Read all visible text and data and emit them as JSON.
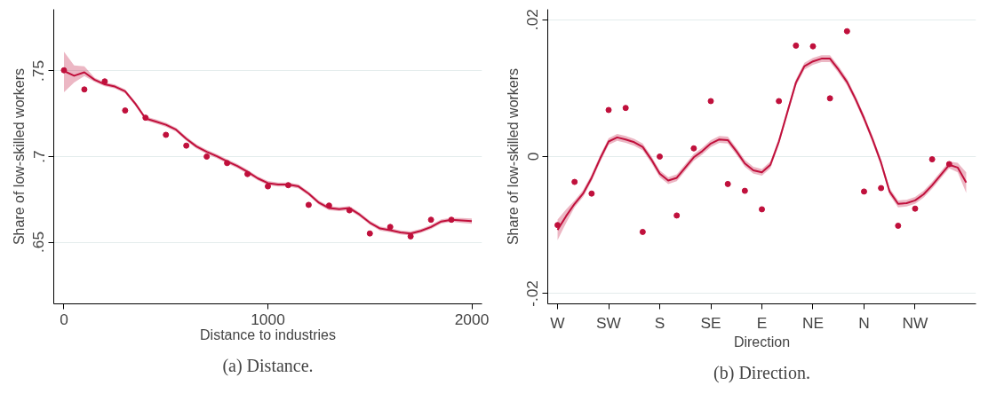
{
  "chart_data": [
    {
      "type": "scatter",
      "title": "(a) Distance.",
      "xlabel": "Distance to industries",
      "ylabel": "Share of low-skilled workers",
      "xlim": [
        -50,
        2050
      ],
      "xticks": [
        0,
        1000,
        2000
      ],
      "ylim": [
        0.614,
        0.786
      ],
      "yticks": [
        {
          "value": 0.65,
          "label": ".65"
        },
        {
          "value": 0.7,
          "label": ".7"
        },
        {
          "value": 0.75,
          "label": ".75"
        }
      ],
      "grid": "y",
      "series": [
        {
          "marker": "circle",
          "color": "#c0103c",
          "x": [
            0,
            100,
            200,
            300,
            400,
            500,
            600,
            700,
            800,
            900,
            1000,
            1100,
            1200,
            1300,
            1400,
            1500,
            1600,
            1700,
            1800,
            1900
          ],
          "values": [
            0.7504,
            0.7392,
            0.7439,
            0.7269,
            0.7227,
            0.7127,
            0.7064,
            0.7,
            0.6962,
            0.6898,
            0.6826,
            0.6833,
            0.6718,
            0.6714,
            0.6686,
            0.6551,
            0.6589,
            0.6534,
            0.6631,
            0.6631
          ]
        },
        {
          "type": "line",
          "line_style": "solid",
          "color": "#c0103c",
          "x": [
            0,
            50,
            100,
            150,
            200,
            250,
            300,
            350,
            400,
            450,
            500,
            550,
            600,
            650,
            700,
            750,
            800,
            850,
            900,
            950,
            1000,
            1050,
            1100,
            1150,
            1200,
            1250,
            1300,
            1350,
            1400,
            1450,
            1500,
            1550,
            1600,
            1650,
            1700,
            1750,
            1800,
            1850,
            1900,
            1950,
            2000
          ],
          "values": [
            0.75,
            0.7472,
            0.7492,
            0.7449,
            0.7422,
            0.7409,
            0.7381,
            0.7309,
            0.7223,
            0.7205,
            0.7186,
            0.7157,
            0.7104,
            0.7059,
            0.7028,
            0.7002,
            0.6972,
            0.6945,
            0.6911,
            0.6873,
            0.6845,
            0.6837,
            0.6837,
            0.6826,
            0.6784,
            0.6731,
            0.6699,
            0.6693,
            0.6699,
            0.6661,
            0.6614,
            0.658,
            0.657,
            0.6557,
            0.6551,
            0.6566,
            0.6589,
            0.6621,
            0.6631,
            0.6627,
            0.6623
          ],
          "lower": [
            0.7375,
            0.7432,
            0.747,
            0.7437,
            0.741,
            0.7397,
            0.7369,
            0.7297,
            0.7211,
            0.7193,
            0.7174,
            0.7145,
            0.7092,
            0.7047,
            0.7016,
            0.699,
            0.696,
            0.6933,
            0.6899,
            0.6861,
            0.6833,
            0.6825,
            0.6825,
            0.6814,
            0.6772,
            0.6719,
            0.6687,
            0.6681,
            0.6687,
            0.6649,
            0.6602,
            0.6568,
            0.6558,
            0.6545,
            0.6539,
            0.6554,
            0.6577,
            0.6609,
            0.6619,
            0.6613,
            0.6607
          ],
          "upper": [
            0.7612,
            0.7532,
            0.7527,
            0.7461,
            0.7434,
            0.7421,
            0.7393,
            0.7321,
            0.7235,
            0.7217,
            0.7198,
            0.7169,
            0.7116,
            0.7071,
            0.704,
            0.7014,
            0.6984,
            0.6957,
            0.6923,
            0.6885,
            0.6857,
            0.6849,
            0.6849,
            0.6838,
            0.6796,
            0.6743,
            0.6711,
            0.6705,
            0.6711,
            0.6673,
            0.6626,
            0.6592,
            0.6582,
            0.6569,
            0.6563,
            0.6578,
            0.6601,
            0.6633,
            0.6643,
            0.6641,
            0.6639
          ]
        }
      ]
    },
    {
      "type": "scatter",
      "title": "(b) Direction.",
      "xlabel": "Direction",
      "ylabel": "Share of low-skilled workers",
      "categories": [
        "W",
        null,
        null,
        null,
        null,
        null,
        "SW",
        null,
        null,
        null,
        null,
        null,
        "S",
        null,
        null,
        null,
        null,
        null,
        "SE",
        null,
        null,
        null,
        null,
        null,
        "E",
        null,
        null,
        null,
        null,
        null,
        "NE",
        null,
        null,
        null,
        null,
        null,
        "N",
        null,
        null,
        null,
        null,
        null,
        "NW",
        null,
        null,
        null,
        null,
        null,
        null
      ],
      "ylim": [
        -0.0215,
        0.0215
      ],
      "yticks": [
        {
          "value": -0.02,
          "label": "-.02"
        },
        0,
        {
          "value": 0.02,
          "label": ".02"
        }
      ],
      "grid": "y",
      "series": [
        {
          "marker": "circle",
          "color": "#c0103c",
          "values": [
            -0.01,
            null,
            -0.0037,
            null,
            -0.0054,
            null,
            0.0068,
            null,
            0.0071,
            null,
            -0.011,
            null,
            0.0,
            null,
            -0.0086,
            null,
            0.0012,
            null,
            0.0081,
            null,
            -0.004,
            null,
            -0.005,
            null,
            -0.0077,
            null,
            0.0081,
            null,
            0.0162,
            null,
            0.0161,
            null,
            0.0085,
            null,
            0.0183,
            null,
            -0.0051,
            null,
            -0.0046,
            null,
            -0.0101,
            null,
            -0.0076,
            null,
            -0.0004,
            null,
            -0.0011,
            null,
            null
          ]
        },
        {
          "type": "line",
          "line_style": "solid",
          "color": "#c0103c",
          "values": [
            -0.0107,
            -0.0087,
            -0.0069,
            -0.0054,
            -0.0031,
            -0.0003,
            0.0022,
            0.0028,
            0.0025,
            0.0021,
            0.0014,
            -0.0004,
            -0.0025,
            -0.0035,
            -0.0031,
            -0.0016,
            -0.0001,
            0.0008,
            0.0019,
            0.0025,
            0.0024,
            0.0008,
            -0.001,
            -0.002,
            -0.0023,
            -0.0012,
            0.0022,
            0.0065,
            0.0108,
            0.0132,
            0.0139,
            0.0143,
            0.0143,
            0.0127,
            0.0109,
            0.0084,
            0.0056,
            0.0025,
            -0.0009,
            -0.0051,
            -0.0069,
            -0.0068,
            -0.0064,
            -0.0055,
            -0.0042,
            -0.0027,
            -0.0012,
            -0.0016,
            -0.0038
          ],
          "lower": [
            -0.0122,
            -0.0097,
            -0.0074,
            -0.0059,
            -0.0036,
            -0.0008,
            0.0017,
            0.0023,
            0.002,
            0.0016,
            0.0009,
            -0.0009,
            -0.003,
            -0.004,
            -0.0036,
            -0.0021,
            -0.0006,
            0.0003,
            0.0014,
            0.002,
            0.0019,
            0.0003,
            -0.0015,
            -0.0025,
            -0.0028,
            -0.0017,
            0.0017,
            0.006,
            0.0103,
            0.0127,
            0.0134,
            0.0138,
            0.0138,
            0.0122,
            0.0104,
            0.0079,
            0.0051,
            0.002,
            -0.0014,
            -0.0056,
            -0.0074,
            -0.0073,
            -0.0069,
            -0.006,
            -0.0047,
            -0.0032,
            -0.0017,
            -0.0023,
            -0.0053
          ],
          "upper": [
            -0.0092,
            -0.0077,
            -0.0064,
            -0.0049,
            -0.0026,
            0.0002,
            0.0027,
            0.0033,
            0.003,
            0.0026,
            0.0019,
            0.0001,
            -0.002,
            -0.003,
            -0.0026,
            -0.0011,
            0.0004,
            0.0013,
            0.0024,
            0.003,
            0.0029,
            0.0013,
            -0.0005,
            -0.0015,
            -0.0018,
            -0.0007,
            0.0027,
            0.007,
            0.0113,
            0.0137,
            0.0144,
            0.0148,
            0.0148,
            0.0132,
            0.0114,
            0.0089,
            0.0061,
            0.003,
            -0.0004,
            -0.0046,
            -0.0064,
            -0.0063,
            -0.0059,
            -0.005,
            -0.0037,
            -0.0022,
            -0.0007,
            -0.0009,
            -0.0023
          ]
        }
      ]
    }
  ]
}
